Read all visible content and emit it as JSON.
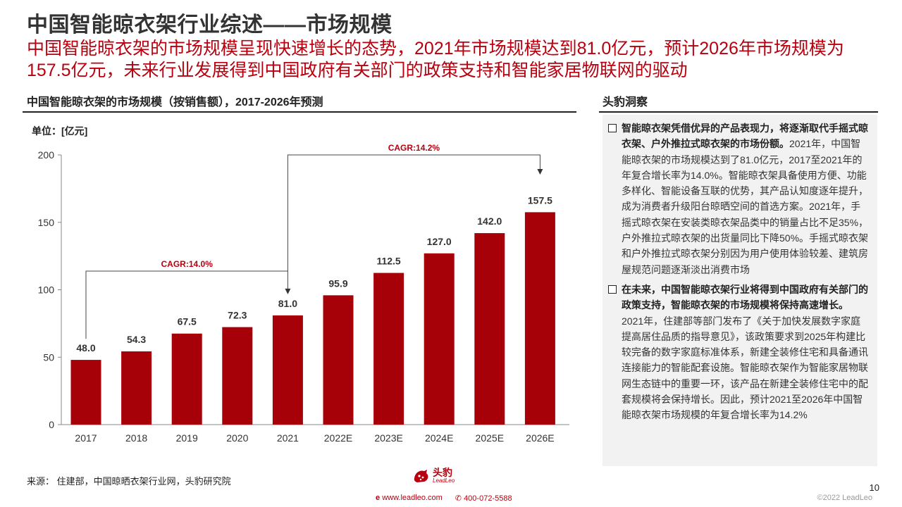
{
  "slide": {
    "title": "中国智能晾衣架行业综述——市场规模",
    "subtitle": "中国智能晾衣架的市场规模呈现快速增长的态势，2021年市场规模达到81.0亿元，预计2026年市场规模为157.5亿元，未来行业发展得到中国政府有关部门的政策支持和智能家居物联网的驱动",
    "page_number": "10"
  },
  "chart_section_title": "中国智能晾衣架的市场规模（按销售额），2017-2026年预测",
  "chart_data": {
    "type": "bar",
    "unit_label": "单位：[亿元]",
    "categories": [
      "2017",
      "2018",
      "2019",
      "2020",
      "2021",
      "2022E",
      "2023E",
      "2024E",
      "2025E",
      "2026E"
    ],
    "values": [
      48.0,
      54.3,
      67.5,
      72.3,
      81.0,
      95.9,
      112.5,
      127.0,
      142.0,
      157.5
    ],
    "value_labels": [
      "48.0",
      "54.3",
      "67.5",
      "72.3",
      "81.0",
      "95.9",
      "112.5",
      "127.0",
      "142.0",
      "157.5"
    ],
    "ylim": [
      0,
      200
    ],
    "yticks": [
      "0",
      "50",
      "100",
      "150",
      "200"
    ],
    "bar_color": "#a60008",
    "annotations": [
      {
        "text": "CAGR:14.0%",
        "from_index": 0,
        "to_index": 4
      },
      {
        "text": "CAGR:14.2%",
        "from_index": 4,
        "to_index": 9
      }
    ]
  },
  "insights": {
    "heading": "头豹洞察",
    "points": [
      {
        "bold": "智能晾衣架凭借优异的产品表现力，将逐渐取代手摇式晾衣架、户外推拉式晾衣架的市场份额。",
        "text": "2021年，中国智能晾衣架的市场规模达到了81.0亿元，2017至2021年的年复合增长率为14.0%。智能晾衣架具备使用方便、功能多样化、智能设备互联的优势，其产品认知度逐年提升，成为消费者升级阳台晾晒空间的首选方案。2021年，手摇式晾衣架在安装类晾衣架品类中的销量占比不足35%，户外推拉式晾衣架的出货量同比下降50%。手摇式晾衣架和户外推拉式晾衣架分别因为用户使用体验较差、建筑房屋规范问题逐渐淡出消费市场"
      },
      {
        "bold": "在未来，中国智能晾衣架行业将得到中国政府有关部门的政策支持，智能晾衣架的市场规模将保持高速增长。",
        "text": "2021年，住建部等部门发布了《关于加快发展数字家庭 提高居住品质的指导意见》，该政策要求到2025年构建比较完备的数字家庭标准体系，新建全装修住宅和具备通讯连接能力的智能配套设施。智能晾衣架作为智能家居物联网生态链中的重要一环，该产品在新建全装修住宅中的配套规模将会保持增长。因此，预计2021至2026年中国智能晾衣架市场规模的年复合增长率为14.2%"
      }
    ]
  },
  "footer": {
    "source": "来源：  住建部，中国晾晒衣架行业网，头豹研究院",
    "logo_text": "头豹",
    "logo_sub": "LeadLeo",
    "website": "www.leadleo.com",
    "phone": "400-072-5588",
    "copyright": "©2022 LeadLeo"
  },
  "colors": {
    "accent": "#b8000e",
    "bar": "#a60008",
    "panel": "#f2f2f2"
  }
}
